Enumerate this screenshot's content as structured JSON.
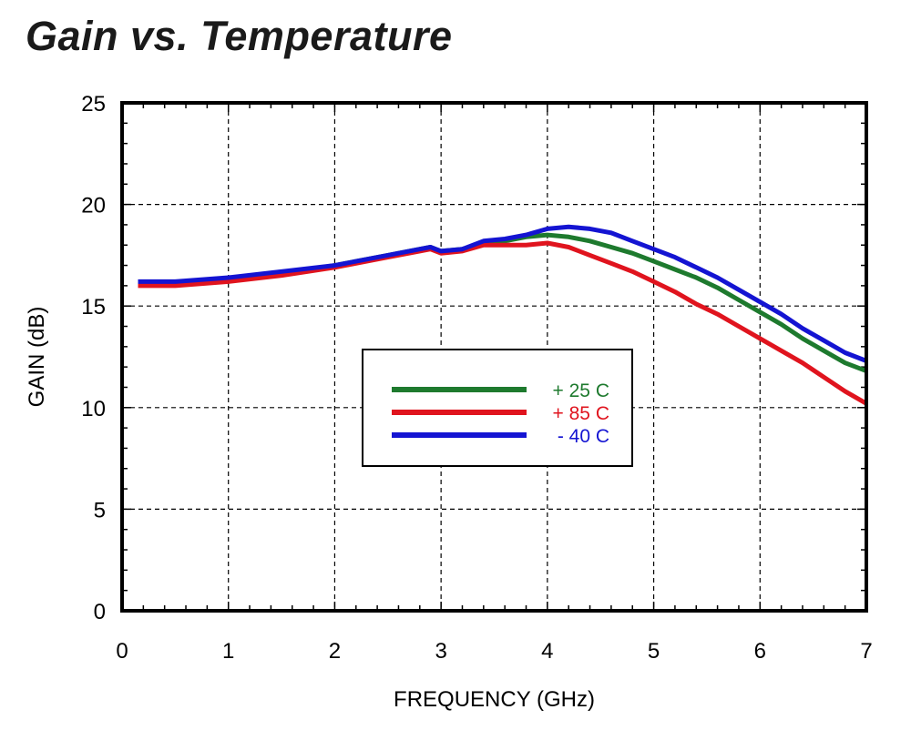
{
  "chart_data": {
    "type": "line",
    "title": "Gain vs. Temperature",
    "xlabel": "FREQUENCY (GHz)",
    "ylabel": "GAIN (dB)",
    "xlim": [
      0,
      7
    ],
    "ylim": [
      0,
      25
    ],
    "xticks": [
      0,
      1,
      2,
      3,
      4,
      5,
      6,
      7
    ],
    "yticks": [
      0,
      5,
      10,
      15,
      20,
      25
    ],
    "grid": true,
    "legend_position": "center",
    "series": [
      {
        "name": "+ 25 C",
        "color": "#1e7a2e",
        "x": [
          0.15,
          0.5,
          1.0,
          1.5,
          2.0,
          2.2,
          2.5,
          2.8,
          2.9,
          3.0,
          3.2,
          3.4,
          3.6,
          3.8,
          4.0,
          4.2,
          4.4,
          4.6,
          4.8,
          5.0,
          5.2,
          5.4,
          5.6,
          5.8,
          6.0,
          6.2,
          6.4,
          6.6,
          6.8,
          7.0
        ],
        "y": [
          16.1,
          16.1,
          16.3,
          16.6,
          17.0,
          17.2,
          17.5,
          17.8,
          17.9,
          17.7,
          17.8,
          18.1,
          18.2,
          18.4,
          18.5,
          18.4,
          18.2,
          17.9,
          17.6,
          17.2,
          16.8,
          16.4,
          15.9,
          15.3,
          14.7,
          14.1,
          13.4,
          12.8,
          12.2,
          11.8
        ]
      },
      {
        "name": "+ 85 C",
        "color": "#e0141e",
        "x": [
          0.15,
          0.5,
          1.0,
          1.5,
          2.0,
          2.2,
          2.5,
          2.8,
          2.9,
          3.0,
          3.2,
          3.4,
          3.6,
          3.8,
          4.0,
          4.2,
          4.4,
          4.6,
          4.8,
          5.0,
          5.2,
          5.4,
          5.6,
          5.8,
          6.0,
          6.2,
          6.4,
          6.6,
          6.8,
          7.0
        ],
        "y": [
          16.0,
          16.0,
          16.2,
          16.5,
          16.9,
          17.1,
          17.4,
          17.7,
          17.8,
          17.6,
          17.7,
          18.0,
          18.0,
          18.0,
          18.1,
          17.9,
          17.5,
          17.1,
          16.7,
          16.2,
          15.7,
          15.1,
          14.6,
          14.0,
          13.4,
          12.8,
          12.2,
          11.5,
          10.8,
          10.2
        ]
      },
      {
        "name": "- 40 C",
        "color": "#1414d2",
        "x": [
          0.15,
          0.5,
          1.0,
          1.5,
          2.0,
          2.2,
          2.5,
          2.8,
          2.9,
          3.0,
          3.2,
          3.4,
          3.6,
          3.8,
          4.0,
          4.2,
          4.4,
          4.6,
          4.8,
          5.0,
          5.2,
          5.4,
          5.6,
          5.8,
          6.0,
          6.2,
          6.4,
          6.6,
          6.8,
          7.0
        ],
        "y": [
          16.2,
          16.2,
          16.4,
          16.7,
          17.0,
          17.2,
          17.5,
          17.8,
          17.9,
          17.7,
          17.8,
          18.2,
          18.3,
          18.5,
          18.8,
          18.9,
          18.8,
          18.6,
          18.2,
          17.8,
          17.4,
          16.9,
          16.4,
          15.8,
          15.2,
          14.6,
          13.9,
          13.3,
          12.7,
          12.3
        ]
      }
    ]
  }
}
